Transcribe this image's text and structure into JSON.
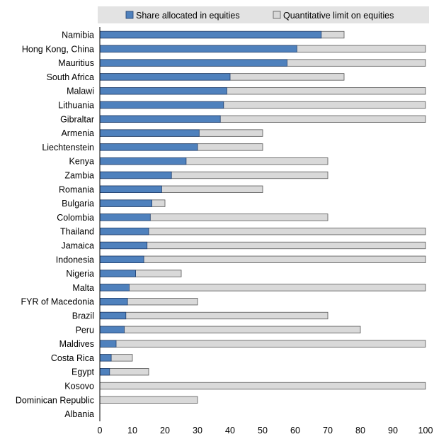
{
  "chart_data": {
    "type": "bar",
    "orientation": "horizontal",
    "stacking": "overlay",
    "categories": [
      "Namibia",
      "Hong Kong, China",
      "Mauritius",
      "South Africa",
      "Malawi",
      "Lithuania",
      "Gibraltar",
      "Armenia",
      "Liechtenstein",
      "Kenya",
      "Zambia",
      "Romania",
      "Bulgaria",
      "Colombia",
      "Thailand",
      "Jamaica",
      "Indonesia",
      "Nigeria",
      "Malta",
      "FYR of Macedonia",
      "Brazil",
      "Peru",
      "Maldives",
      "Costa Rica",
      "Egypt",
      "Kosovo",
      "Dominican Republic",
      "Albania"
    ],
    "series": [
      {
        "name": "Share allocated in equities",
        "color": "#4f81bd",
        "values": [
          68,
          60.5,
          57.5,
          40,
          39,
          38,
          37,
          30.5,
          30,
          26.5,
          22,
          19,
          16,
          15.5,
          15,
          14.5,
          13.5,
          11,
          9,
          8.5,
          8,
          7.5,
          5,
          3.5,
          3,
          0,
          0,
          0
        ]
      },
      {
        "name": "Quantitative limit on equities",
        "color": "#d9d9d9",
        "values": [
          75,
          100,
          100,
          75,
          100,
          100,
          100,
          50,
          50,
          70,
          70,
          50,
          20,
          70,
          100,
          100,
          100,
          25,
          100,
          30,
          70,
          80,
          100,
          10,
          15,
          100,
          30,
          0
        ]
      }
    ],
    "xlim": [
      0,
      100
    ],
    "xticks": [
      0,
      10,
      20,
      30,
      40,
      50,
      60,
      70,
      80,
      90,
      100
    ],
    "title": "",
    "xlabel": "",
    "ylabel": "",
    "grid": false,
    "legend": "top"
  }
}
